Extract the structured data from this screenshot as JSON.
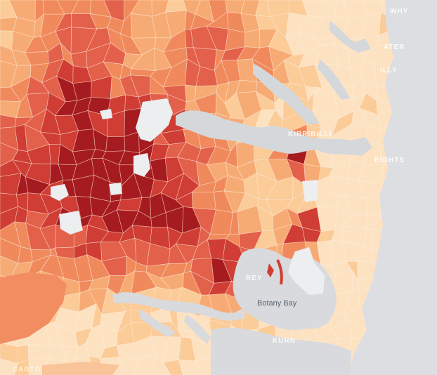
{
  "map": {
    "attribution": "CARTO",
    "water_label": "Botany Bay",
    "place_labels": [
      "WHY",
      "ATER",
      "ILLY",
      "KIRRIBILLI",
      "EIGHTS",
      "REY",
      "KURN"
    ],
    "colors": {
      "background": "#d4d6d9",
      "water": "#d8dadd",
      "ocean": "#dee0e3",
      "no_data": "#eceef0",
      "scale": [
        "#fde2c2",
        "#fbcb98",
        "#f7ab74",
        "#f08a5c",
        "#e3604a",
        "#cf3d34",
        "#a61b1f"
      ]
    }
  }
}
